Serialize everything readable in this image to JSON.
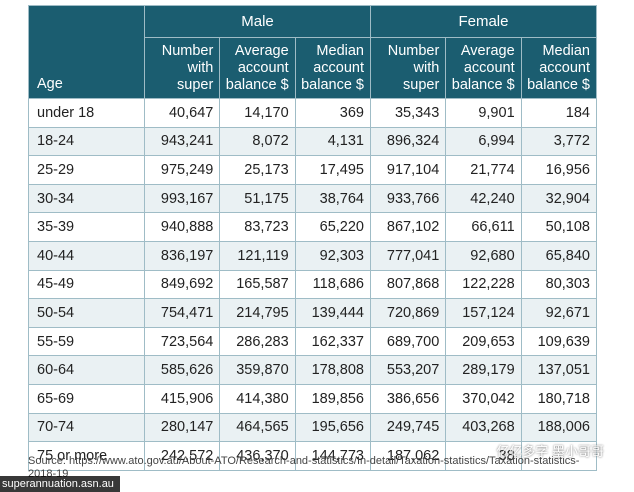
{
  "table": {
    "age_header": "Age",
    "groups": [
      "Male",
      "Female"
    ],
    "sub_headers": [
      [
        "Number",
        "with",
        "super"
      ],
      [
        "Average",
        "account",
        "balance $"
      ],
      [
        "Median",
        "account",
        "balance $"
      ]
    ],
    "rows": [
      [
        "under 18",
        "40,647",
        "14,170",
        "369",
        "35,343",
        "9,901",
        "184"
      ],
      [
        "18-24",
        "943,241",
        "8,072",
        "4,131",
        "896,324",
        "6,994",
        "3,772"
      ],
      [
        "25-29",
        "975,249",
        "25,173",
        "17,495",
        "917,104",
        "21,774",
        "16,956"
      ],
      [
        "30-34",
        "993,167",
        "51,175",
        "38,764",
        "933,766",
        "42,240",
        "32,904"
      ],
      [
        "35-39",
        "940,888",
        "83,723",
        "65,220",
        "867,102",
        "66,611",
        "50,108"
      ],
      [
        "40-44",
        "836,197",
        "121,119",
        "92,303",
        "777,041",
        "92,680",
        "65,840"
      ],
      [
        "45-49",
        "849,692",
        "165,587",
        "118,686",
        "807,868",
        "122,228",
        "80,303"
      ],
      [
        "50-54",
        "754,471",
        "214,795",
        "139,444",
        "720,869",
        "157,124",
        "92,671"
      ],
      [
        "55-59",
        "723,564",
        "286,283",
        "162,337",
        "689,700",
        "209,653",
        "109,639"
      ],
      [
        "60-64",
        "585,626",
        "359,870",
        "178,808",
        "553,207",
        "289,179",
        "137,051"
      ],
      [
        "65-69",
        "415,906",
        "414,380",
        "189,856",
        "386,656",
        "370,042",
        "180,718"
      ],
      [
        "70-74",
        "280,147",
        "464,565",
        "195,656",
        "249,745",
        "403,268",
        "188,006"
      ],
      [
        "75 or more",
        "242,572",
        "436,370",
        "144,773",
        "187,062",
        "38",
        ""
      ]
    ]
  },
  "source": {
    "label": "Source:",
    "url": "https://www.ato.gov.au/About-ATO/Research-and-statistics/In-detail/Taxation-statistics/Taxation-statistics-2018-19"
  },
  "watermark": "superannuation.asn.au",
  "watermark_cn": "亿亿多字  墨小哥哥",
  "colors": {
    "header_bg": "#1b5d70",
    "stripe": "#eaf1f3",
    "grid": "#9fbcc6"
  }
}
